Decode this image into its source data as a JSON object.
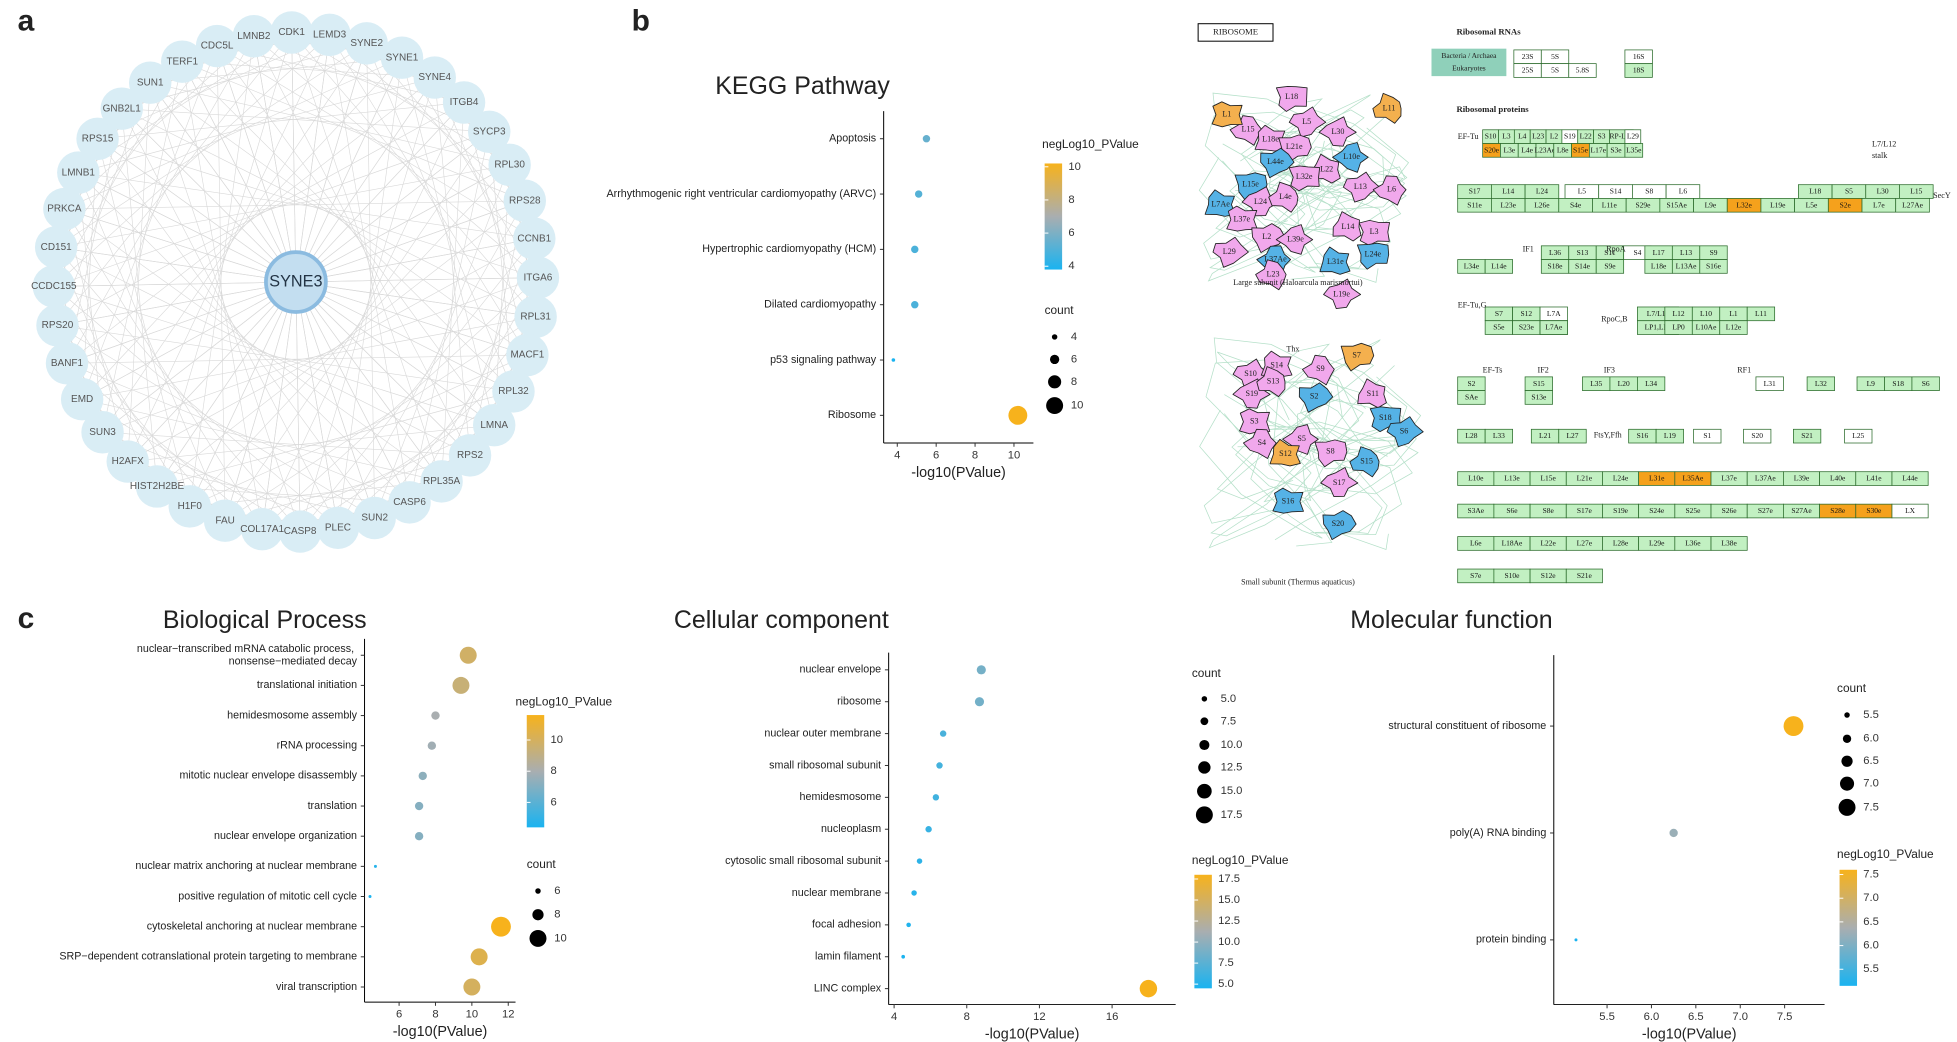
{
  "panel_labels": [
    "a",
    "b",
    "c"
  ],
  "network": {
    "center": "SYNE3",
    "nodes": [
      "CDK1",
      "LEMD3",
      "SYNE2",
      "SYNE1",
      "SYNE4",
      "ITGB4",
      "SYCP3",
      "RPL30",
      "RPS28",
      "CCNB1",
      "ITGA6",
      "RPL31",
      "MACF1",
      "RPL32",
      "LMNA",
      "RPS2",
      "RPL35A",
      "CASP6",
      "SUN2",
      "PLEC",
      "CASP8",
      "COL17A1",
      "FAU",
      "H1F0",
      "HIST2H2BE",
      "H2AFX",
      "SUN3",
      "EMD",
      "BANF1",
      "RPS20",
      "CCDC155",
      "CD151",
      "PRKCA",
      "LMNB1",
      "RPS15",
      "GNB2L1",
      "SUN1",
      "TERF1",
      "CDC5L",
      "LMNB2"
    ]
  },
  "ribosome_map": {
    "title": "RIBOSOME",
    "large_subunit": "Large subunit (Haloarcula marismortui)",
    "small_subunit": "Small subunit (Thermus aquaticus)",
    "rna_heading": "Ribosomal RNAs",
    "protein_heading": "Ribosomal proteins",
    "rna_groups": [
      "Bacteria / Archaea",
      "Eukaryotes"
    ],
    "fills": {
      "g": "#c2f0c2",
      "o": "#f5a11c",
      "w": "#ffffff",
      "p": "#f1a8ec",
      "b": "#55b2e6",
      "a": "#f4b04e"
    },
    "rna_rows": [
      [
        [
          [
            "23S",
            "w"
          ],
          [
            "5S",
            "w"
          ]
        ],
        [
          [
            "16S",
            "w"
          ]
        ]
      ],
      [
        [
          [
            "25S",
            "w"
          ],
          [
            "5S",
            "w"
          ],
          [
            "5.8S",
            "w"
          ]
        ],
        [
          [
            "18S",
            "g"
          ]
        ]
      ]
    ],
    "side_labels": [
      "EF-Tu",
      "L7/L12",
      "stalk",
      "SecY",
      "IF1",
      "RpoA",
      "EF-Tu,G",
      "RpoC,B",
      "EF-Ts",
      "IF2",
      "IF3",
      "RF1",
      "FtsY,Ffh"
    ],
    "rows": [
      [
        [
          [
            "S10",
            "g"
          ],
          [
            "L3",
            "g"
          ],
          [
            "L4",
            "g"
          ],
          [
            "L23",
            "g"
          ],
          [
            "L2",
            "g"
          ],
          [
            "S19",
            "w"
          ],
          [
            "L22",
            "g"
          ],
          [
            "S3",
            "g"
          ],
          [
            "RP-L16",
            "g"
          ]
        ],
        [
          [
            "L29",
            "w"
          ]
        ]
      ],
      [
        [
          [
            "S20e",
            "o"
          ],
          [
            "L3e",
            "g"
          ],
          [
            "L4e",
            "g"
          ],
          [
            "L23Ae",
            "g"
          ],
          [
            "L8e",
            "g"
          ],
          [
            "S15e",
            "o"
          ],
          [
            "L17e",
            "g"
          ],
          [
            "S3e",
            "g"
          ]
        ],
        [
          [
            "L35e",
            "g"
          ]
        ]
      ],
      [
        [
          [
            "S17",
            "g"
          ],
          [
            "L14",
            "g"
          ],
          [
            "L24",
            "g"
          ]
        ],
        [
          [
            "L5",
            "w"
          ],
          [
            "S14",
            "w"
          ],
          [
            "S8",
            "w"
          ],
          [
            "L6",
            "w"
          ]
        ],
        [
          [
            "L18",
            "g"
          ],
          [
            "S5",
            "g"
          ],
          [
            "L30",
            "g"
          ],
          [
            "L15",
            "g"
          ]
        ]
      ],
      [
        [
          [
            "S11e",
            "g"
          ],
          [
            "L23e",
            "g"
          ],
          [
            "L26e",
            "g"
          ],
          [
            "S4e",
            "g"
          ],
          [
            "L11e",
            "g"
          ],
          [
            "S29e",
            "g"
          ],
          [
            "S15Ae",
            "g"
          ],
          [
            "L9e",
            "g"
          ],
          [
            "L32e",
            "o"
          ],
          [
            "L19e",
            "g"
          ],
          [
            "L5e",
            "g"
          ],
          [
            "S2e",
            "o"
          ],
          [
            "L7e",
            "g"
          ],
          [
            "L27Ae",
            "g"
          ]
        ]
      ],
      [
        [
          [
            "L36",
            "g"
          ],
          [
            "S13",
            "g"
          ],
          [
            "S11",
            "g"
          ],
          [
            "S4",
            "w"
          ]
        ],
        [
          [
            "L17",
            "g"
          ],
          [
            "L13",
            "g"
          ],
          [
            "S9",
            "g"
          ]
        ]
      ],
      [
        [
          [
            "L34e",
            "g"
          ],
          [
            "L14e",
            "g"
          ]
        ],
        [
          [
            "S18e",
            "g"
          ],
          [
            "S14e",
            "g"
          ],
          [
            "S9e",
            "g"
          ]
        ],
        [
          [
            "L18e",
            "g"
          ],
          [
            "L13Ae",
            "g"
          ],
          [
            "S16e",
            "g"
          ]
        ]
      ],
      [
        [
          [
            "S7",
            "g"
          ],
          [
            "S12",
            "g"
          ]
        ],
        [
          [
            "L7A",
            "w"
          ]
        ],
        [
          [
            "L7/L12",
            "g"
          ],
          [
            "L12",
            "g"
          ],
          [
            "L10",
            "g"
          ],
          [
            "L1",
            "g"
          ],
          [
            "L11",
            "g"
          ]
        ]
      ],
      [
        [
          [
            "S5e",
            "g"
          ],
          [
            "S23e",
            "g"
          ],
          [
            "L30e",
            "o"
          ]
        ],
        [
          [
            "L7Ae",
            "g"
          ]
        ],
        [
          [
            "LP1,LP2",
            "g"
          ],
          [
            "LP0",
            "g"
          ],
          [
            "L10Ae",
            "g"
          ],
          [
            "L12e",
            "g"
          ]
        ]
      ],
      [
        [
          [
            "S2",
            "g"
          ]
        ],
        [
          [
            "S15",
            "g"
          ]
        ],
        [
          [
            "L35",
            "g"
          ],
          [
            "L20",
            "g"
          ],
          [
            "L34",
            "g"
          ]
        ],
        [
          [
            "L31",
            "w"
          ]
        ],
        [
          [
            "L32",
            "g"
          ]
        ],
        [
          [
            "L9",
            "g"
          ],
          [
            "S18",
            "g"
          ],
          [
            "S6",
            "g"
          ]
        ]
      ],
      [
        [
          [
            "SAe",
            "g"
          ]
        ],
        [
          [
            "S13e",
            "g"
          ]
        ]
      ],
      [
        [
          [
            "L28",
            "g"
          ],
          [
            "L33",
            "g"
          ]
        ],
        [
          [
            "L21",
            "g"
          ],
          [
            "L27",
            "g"
          ]
        ],
        [
          [
            "S16",
            "g"
          ],
          [
            "L19",
            "g"
          ]
        ],
        [
          [
            "S1",
            "w"
          ]
        ],
        [
          [
            "S20",
            "w"
          ]
        ],
        [
          [
            "S21",
            "g"
          ]
        ],
        [
          [
            "L25",
            "w"
          ]
        ]
      ],
      [
        [
          [
            "L10e",
            "g"
          ],
          [
            "L13e",
            "g"
          ],
          [
            "L15e",
            "g"
          ],
          [
            "L21e",
            "g"
          ],
          [
            "L24e",
            "g"
          ],
          [
            "L31e",
            "o"
          ],
          [
            "L35Ae",
            "o"
          ],
          [
            "L37e",
            "g"
          ],
          [
            "L37Ae",
            "g"
          ],
          [
            "L39e",
            "g"
          ],
          [
            "L40e",
            "g"
          ],
          [
            "L41e",
            "g"
          ],
          [
            "L44e",
            "g"
          ]
        ]
      ],
      [
        [
          [
            "S3Ae",
            "g"
          ],
          [
            "S6e",
            "g"
          ],
          [
            "S8e",
            "g"
          ],
          [
            "S17e",
            "g"
          ],
          [
            "S19e",
            "g"
          ],
          [
            "S24e",
            "g"
          ],
          [
            "S25e",
            "g"
          ],
          [
            "S26e",
            "g"
          ],
          [
            "S27e",
            "g"
          ],
          [
            "S27Ae",
            "g"
          ],
          [
            "S28e",
            "o"
          ],
          [
            "S30e",
            "o"
          ],
          [
            "LX",
            "w"
          ]
        ]
      ],
      [
        [
          [
            "L6e",
            "g"
          ],
          [
            "L18Ae",
            "g"
          ],
          [
            "L22e",
            "g"
          ],
          [
            "L27e",
            "g"
          ],
          [
            "L28e",
            "g"
          ],
          [
            "L29e",
            "g"
          ],
          [
            "L36e",
            "g"
          ],
          [
            "L38e",
            "g"
          ]
        ]
      ],
      [
        [
          [
            "S7e",
            "g"
          ],
          [
            "S10e",
            "g"
          ],
          [
            "S12e",
            "g"
          ],
          [
            "S21e",
            "g"
          ]
        ]
      ]
    ],
    "large_blobs": [
      [
        "L18",
        "p"
      ],
      [
        "L5",
        "p"
      ],
      [
        "L15",
        "p"
      ],
      [
        "L18e",
        "p"
      ],
      [
        "L21e",
        "p"
      ],
      [
        "L30",
        "p"
      ],
      [
        "L11",
        "a"
      ],
      [
        "L1",
        "a"
      ],
      [
        "L44e",
        "b"
      ],
      [
        "L10e",
        "b"
      ],
      [
        "L22",
        "p"
      ],
      [
        "L32e",
        "p"
      ],
      [
        "L13",
        "p"
      ],
      [
        "L6",
        "p"
      ],
      [
        "L7Ae",
        "b"
      ],
      [
        "L15e",
        "b"
      ],
      [
        "L24",
        "p"
      ],
      [
        "L4e",
        "p"
      ],
      [
        "L37e",
        "p"
      ],
      [
        "L2",
        "p"
      ],
      [
        "L39e",
        "p"
      ],
      [
        "L14",
        "p"
      ],
      [
        "L3",
        "p"
      ],
      [
        "L29",
        "p"
      ],
      [
        "L37Ae",
        "b"
      ],
      [
        "L31e",
        "b"
      ],
      [
        "L24e",
        "b"
      ],
      [
        "L19e",
        "p"
      ],
      [
        "L23",
        "p"
      ]
    ],
    "small_blobs": [
      [
        "Thx",
        "w"
      ],
      [
        "S10",
        "p"
      ],
      [
        "S9",
        "p"
      ],
      [
        "S14",
        "p"
      ],
      [
        "S7",
        "a"
      ],
      [
        "S19",
        "p"
      ],
      [
        "S13",
        "p"
      ],
      [
        "S3",
        "p"
      ],
      [
        "S2",
        "b"
      ],
      [
        "S5",
        "p"
      ],
      [
        "S11",
        "p"
      ],
      [
        "S18",
        "b"
      ],
      [
        "S6",
        "b"
      ],
      [
        "S4",
        "p"
      ],
      [
        "S12",
        "a"
      ],
      [
        "S8",
        "p"
      ],
      [
        "S17",
        "p"
      ],
      [
        "S15",
        "b"
      ],
      [
        "S16",
        "b"
      ],
      [
        "S20",
        "b"
      ]
    ]
  },
  "chart_data": [
    {
      "type": "dot",
      "title": "KEGG Pathway",
      "categories": [
        "Apoptosis",
        "Arrhythmogenic right ventricular cardiomyopathy (ARVC)",
        "Hypertrophic cardiomyopathy (HCM)",
        "Dilated cardiomyopathy",
        "p53 signaling pathway",
        "Ribosome"
      ],
      "values": [
        5.5,
        5.1,
        4.9,
        4.9,
        3.8,
        10.2
      ],
      "sizes": [
        5,
        5,
        5,
        5,
        3,
        11
      ],
      "xlabel": "-log10(PValue)",
      "xlim": [
        3.3,
        11
      ],
      "xticks": [
        4,
        6,
        8,
        10
      ],
      "color_legend": {
        "title": "negLog10_PValue",
        "lim": [
          3.8,
          10.2
        ],
        "ticks": [
          4,
          6,
          8,
          10
        ],
        "colors": [
          "#1ab3f0",
          "#a9aeb0",
          "#f7b21c"
        ]
      },
      "size_legend": {
        "title": "count",
        "values": [
          4,
          6,
          8,
          10
        ]
      }
    },
    {
      "type": "dot",
      "title": "Biological Process",
      "categories": [
        "nuclear−transcribed mRNA catabolic process, nonsense−mediated decay",
        "translational initiation",
        "hemidesmosome assembly",
        "rRNA processing",
        "mitotic nuclear envelope disassembly",
        "translation",
        "nuclear envelope organization",
        "nuclear matrix anchoring at nuclear membrane",
        "positive regulation of mitotic cell cycle",
        "cytoskeletal anchoring at nuclear membrane",
        "SRP−dependent cotranslational protein targeting to membrane",
        "viral transcription"
      ],
      "values": [
        9.8,
        9.4,
        8.0,
        7.8,
        7.3,
        7.1,
        7.1,
        4.7,
        4.4,
        11.6,
        10.4,
        10.0
      ],
      "sizes": [
        10,
        10,
        7,
        7,
        7,
        7,
        7,
        4,
        3,
        11,
        10,
        10
      ],
      "xlabel": "-log10(PValue)",
      "xlim": [
        4.1,
        12.4
      ],
      "xticks": [
        6,
        8,
        10,
        12
      ],
      "color_legend": {
        "title": "negLog10_PValue",
        "lim": [
          4.4,
          11.6
        ],
        "ticks": [
          6,
          8,
          10
        ],
        "colors": [
          "#1ab3f0",
          "#a9aeb0",
          "#f7b21c"
        ]
      },
      "size_legend": {
        "title": "count",
        "values": [
          6,
          8,
          10
        ]
      }
    },
    {
      "type": "dot",
      "title": "Cellular component",
      "categories": [
        "nuclear envelope",
        "ribosome",
        "nuclear outer membrane",
        "small ribosomal subunit",
        "hemidesmosome",
        "nucleoplasm",
        "cytosolic small ribosomal subunit",
        "nuclear membrane",
        "focal adhesion",
        "lamin filament",
        "LINC complex"
      ],
      "values": [
        8.8,
        8.7,
        6.7,
        6.5,
        6.3,
        5.9,
        5.4,
        5.1,
        4.8,
        4.5,
        18.0
      ],
      "sizes": [
        9,
        9,
        6,
        6,
        6,
        6,
        5,
        5,
        4,
        3,
        18
      ],
      "xlabel": "-log10(PValue)",
      "xlim": [
        3.7,
        19.5
      ],
      "xticks": [
        4,
        8,
        12,
        16
      ],
      "color_legend": {
        "title": "negLog10_PValue",
        "lim": [
          4.5,
          18
        ],
        "ticks": [
          {
            "value": 5,
            "label": "5.0"
          },
          7.5,
          {
            "value": 10,
            "label": "10.0"
          },
          12.5,
          {
            "value": 15,
            "label": "15.0"
          },
          17.5
        ],
        "colors": [
          "#1ab3f0",
          "#a9aeb0",
          "#f7b21c"
        ]
      },
      "size_legend": {
        "title": "count",
        "values": [
          {
            "value": 5,
            "label": "5.0"
          },
          7.5,
          {
            "value": 10,
            "label": "10.0"
          },
          12.5,
          {
            "value": 15,
            "label": "15.0"
          },
          17.5
        ]
      }
    },
    {
      "type": "dot",
      "title": "Molecular function",
      "categories": [
        "structural constituent of ribosome",
        "poly(A) RNA binding",
        "protein binding"
      ],
      "values": [
        7.6,
        6.25,
        5.15
      ],
      "sizes": [
        8,
        6,
        5
      ],
      "xlabel": "-log10(PValue)",
      "xlim": [
        4.9,
        7.95
      ],
      "xticks": [
        5.5,
        {
          "value": 6,
          "label": "6.0"
        },
        6.5,
        {
          "value": 7,
          "label": "7.0"
        },
        7.5
      ],
      "color_legend": {
        "title": "negLog10_PValue",
        "lim": [
          5.15,
          7.6
        ],
        "ticks": [
          5.5,
          {
            "value": 6,
            "label": "6.0"
          },
          6.5,
          {
            "value": 7,
            "label": "7.0"
          },
          7.5
        ],
        "colors": [
          "#1ab3f0",
          "#a9aeb0",
          "#f7b21c"
        ]
      },
      "size_legend": {
        "title": "count",
        "values": [
          5.5,
          {
            "value": 6,
            "label": "6.0"
          },
          6.5,
          {
            "value": 7,
            "label": "7.0"
          },
          7.5
        ]
      }
    }
  ]
}
